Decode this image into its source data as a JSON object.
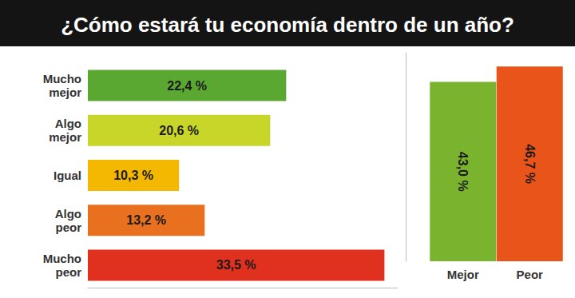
{
  "chart_data": [
    {
      "type": "bar",
      "title": "¿Cómo estará tu economía dentro de un año?",
      "orientation": "horizontal",
      "categories": [
        "Mucho mejor",
        "Algo mejor",
        "Igual",
        "Algo peor",
        "Mucho peor"
      ],
      "values": [
        22.4,
        20.6,
        10.3,
        13.2,
        33.5
      ],
      "value_labels": [
        "22,4 %",
        "20,6 %",
        "10,3 %",
        "13,2 %",
        "33,5 %"
      ],
      "colors": [
        "#5aa832",
        "#c8d62a",
        "#f5b800",
        "#e8701e",
        "#e0301e"
      ],
      "xlim": [
        0,
        35
      ],
      "data_labels": true,
      "tick_labels": "y",
      "grid": false
    },
    {
      "type": "bar",
      "categories": [
        "Mejor",
        "Peor"
      ],
      "values": [
        43.0,
        46.7
      ],
      "value_labels": [
        "43,0 %",
        "46,7 %"
      ],
      "colors": [
        "#7ab32e",
        "#e8541a"
      ],
      "ylim": [
        0,
        50
      ],
      "data_labels": true,
      "tick_labels": "x",
      "grid": false
    }
  ]
}
